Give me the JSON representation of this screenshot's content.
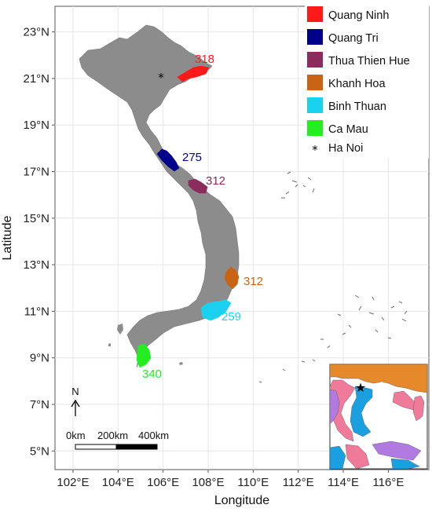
{
  "axes": {
    "xlabel": "Longitude",
    "ylabel": "Latitude",
    "x_ticks": [
      "102°E",
      "104°E",
      "106°E",
      "108°E",
      "110°E",
      "112°E",
      "114°E",
      "116°E"
    ],
    "y_ticks": [
      "5°N",
      "7°N",
      "9°N",
      "11°N",
      "13°N",
      "15°N",
      "17°N",
      "19°N",
      "21°N",
      "23°N"
    ],
    "x_range_deg": [
      101.2,
      117.8
    ],
    "y_range_deg": [
      4.2,
      24.1
    ],
    "grid": true
  },
  "provinces": [
    {
      "name": "Quang Ninh",
      "color": "#ff1a1a",
      "value": "318"
    },
    {
      "name": "Quang Tri",
      "color": "#00008b",
      "value": "275"
    },
    {
      "name": "Thua Thien Hue",
      "color": "#8b2c5c",
      "value": "312"
    },
    {
      "name": "Khanh Hoa",
      "color": "#c86414",
      "value": "312"
    },
    {
      "name": "Binh Thuan",
      "color": "#1ad2f0",
      "value": "259"
    },
    {
      "name": "Ca Mau",
      "color": "#22ee22",
      "value": "340"
    }
  ],
  "capital": {
    "name": "Ha Noi",
    "symbol": "*",
    "lon": 105.8,
    "lat": 21.0
  },
  "north_arrow": {
    "label": "N",
    "icon": "north-arrow-icon"
  },
  "scale_bar": {
    "labels": [
      "0km",
      "200km",
      "400km"
    ]
  },
  "legend": {
    "placement": "top-right"
  },
  "inset": {
    "placement": "bottom-right",
    "icon": "inset-locator-map",
    "colors": [
      "#e6892a",
      "#f07a9a",
      "#1aa0e0",
      "#b07ae0",
      "#ffffff"
    ]
  },
  "colors": {
    "land": "#8c8c8c",
    "grid": "#e6e6e6",
    "background": "#ffffff"
  }
}
